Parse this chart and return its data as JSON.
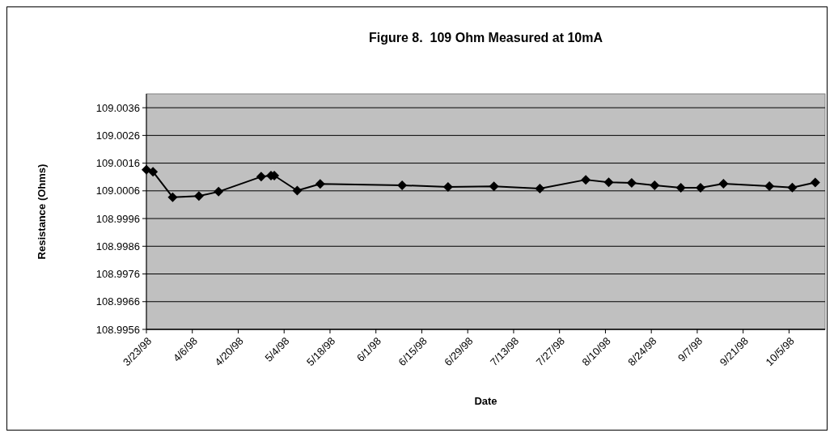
{
  "chart_data": {
    "type": "line",
    "title": "Figure 8.  109 Ohm Measured at 10mA",
    "xlabel": "Date",
    "ylabel": "Resistance (Ohms)",
    "x": [
      "1998-03-23",
      "1998-03-25",
      "1998-03-31",
      "1998-04-08",
      "1998-04-14",
      "1998-04-27",
      "1998-04-30",
      "1998-05-01",
      "1998-05-08",
      "1998-05-15",
      "1998-06-09",
      "1998-06-23",
      "1998-07-07",
      "1998-07-21",
      "1998-08-04",
      "1998-08-11",
      "1998-08-18",
      "1998-08-25",
      "1998-09-02",
      "1998-09-08",
      "1998-09-15",
      "1998-09-29",
      "1998-10-06",
      "1998-10-13"
    ],
    "series": [
      {
        "color": "#000000",
        "values": [
          109.00136,
          109.00129,
          109.00037,
          109.00041,
          109.00057,
          109.00111,
          109.00115,
          109.00115,
          109.00061,
          109.00085,
          109.0008,
          109.00074,
          109.00076,
          109.00068,
          109.001,
          109.00091,
          109.00089,
          109.0008,
          109.00071,
          109.00071,
          109.00086,
          109.00077,
          109.00072,
          109.0009
        ]
      }
    ],
    "xlim": [
      "1998-03-23",
      "1998-10-16"
    ],
    "xticks": [
      {
        "value": "1998-03-23",
        "label": "3/23/98"
      },
      {
        "value": "1998-04-06",
        "label": "4/6/98"
      },
      {
        "value": "1998-04-20",
        "label": "4/20/98"
      },
      {
        "value": "1998-05-04",
        "label": "5/4/98"
      },
      {
        "value": "1998-05-18",
        "label": "5/18/98"
      },
      {
        "value": "1998-06-01",
        "label": "6/1/98"
      },
      {
        "value": "1998-06-15",
        "label": "6/15/98"
      },
      {
        "value": "1998-06-29",
        "label": "6/29/98"
      },
      {
        "value": "1998-07-13",
        "label": "7/13/98"
      },
      {
        "value": "1998-07-27",
        "label": "7/27/98"
      },
      {
        "value": "1998-08-10",
        "label": "8/10/98"
      },
      {
        "value": "1998-08-24",
        "label": "8/24/98"
      },
      {
        "value": "1998-09-07",
        "label": "9/7/98"
      },
      {
        "value": "1998-09-21",
        "label": "9/21/98"
      },
      {
        "value": "1998-10-05",
        "label": "10/5/98"
      }
    ],
    "ylim": [
      108.9956,
      109.0041
    ],
    "yticks": [
      {
        "value": 108.9956,
        "label": "108.9956"
      },
      {
        "value": 108.9966,
        "label": "108.9966"
      },
      {
        "value": 108.9976,
        "label": "108.9976"
      },
      {
        "value": 108.9986,
        "label": "108.9986"
      },
      {
        "value": 108.9996,
        "label": "108.9996"
      },
      {
        "value": 109.0006,
        "label": "109.0006"
      },
      {
        "value": 109.0016,
        "label": "109.0016"
      },
      {
        "value": 109.0026,
        "label": "109.0026"
      },
      {
        "value": 109.0036,
        "label": "109.0036"
      }
    ],
    "grid": "y",
    "marker": "diamond",
    "line_style": "solid"
  }
}
